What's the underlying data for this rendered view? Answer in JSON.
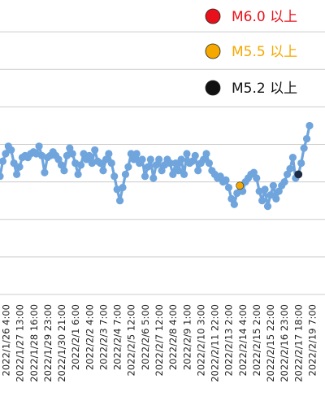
{
  "chart_data": {
    "type": "line",
    "title": "",
    "xlabel": "",
    "ylabel": "",
    "colors": {
      "line": "#6fa5dc",
      "gridline": "#cccccc",
      "m60": "#e8111b",
      "m55": "#f5a800",
      "m52": "#111111",
      "m52_point": "#1b2a4a"
    },
    "legend_position": "top-right",
    "legend": [
      {
        "label": "M6.0 以上",
        "color": "#e8111b",
        "text_color": "#e8111b"
      },
      {
        "label": "M5.5 以上",
        "color": "#f5a800",
        "text_color": "#f5a800"
      },
      {
        "label": "M5.2 以上",
        "color": "#111111",
        "text_color": "#111111"
      }
    ],
    "x_ticks": [
      "2022/1/26 4:00",
      "2022/1/27 13:00",
      "2022/1/28 16:00",
      "2022/1/29 23:00",
      "2022/1/30 21:00",
      "2022/2/1 6:00",
      "2022/2/2 4:00",
      "2022/2/3 7:00",
      "2022/2/4 7:00",
      "2022/2/5 12:00",
      "2022/2/6 5:00",
      "2022/2/7 12:00",
      "2022/2/8 4:00",
      "2022/2/9 1:00",
      "2022/2/10 3:00",
      "2022/2/11 22:00",
      "2022/2/13 2:00",
      "2022/2/14 4:00",
      "2022/2/15 2:00",
      "2022/2/15 22:00",
      "2022/2/16 23:00",
      "2022/2/17 18:00",
      "2022/2/19 7:00"
    ],
    "ylim": [
      0,
      8
    ],
    "y_gridlines": [
      0,
      1,
      2,
      3,
      4,
      5,
      6,
      7,
      8
    ],
    "values": [
      3.15,
      3.55,
      3.75,
      3.95,
      3.85,
      3.5,
      3.2,
      3.4,
      3.65,
      3.7,
      3.65,
      3.75,
      3.8,
      3.75,
      3.95,
      3.7,
      3.25,
      3.65,
      3.7,
      3.8,
      3.7,
      3.6,
      3.45,
      3.3,
      3.7,
      3.9,
      3.75,
      3.5,
      3.2,
      3.45,
      3.75,
      3.6,
      3.7,
      3.5,
      3.85,
      3.55,
      3.5,
      3.3,
      3.6,
      3.75,
      3.5,
      3.15,
      2.8,
      2.5,
      2.85,
      3.2,
      3.4,
      3.75,
      3.6,
      3.75,
      3.5,
      3.6,
      3.15,
      3.4,
      3.6,
      3.1,
      3.45,
      3.6,
      3.3,
      3.45,
      3.6,
      3.5,
      3.2,
      3.5,
      3.3,
      3.6,
      3.2,
      3.75,
      3.5,
      3.55,
      3.7,
      3.3,
      3.5,
      3.6,
      3.75,
      3.5,
      3.3,
      3.2,
      3.1,
      3.15,
      3.0,
      3.05,
      2.85,
      2.55,
      2.4,
      2.7,
      2.9,
      2.75,
      3.0,
      3.1,
      3.2,
      3.25,
      3.1,
      2.75,
      2.5,
      2.8,
      2.35,
      2.65,
      2.9,
      2.55,
      2.75,
      2.9,
      3.0,
      3.2,
      3.35,
      3.65,
      3.1,
      3.2,
      3.5,
      3.9,
      4.15,
      4.5
    ]
  }
}
